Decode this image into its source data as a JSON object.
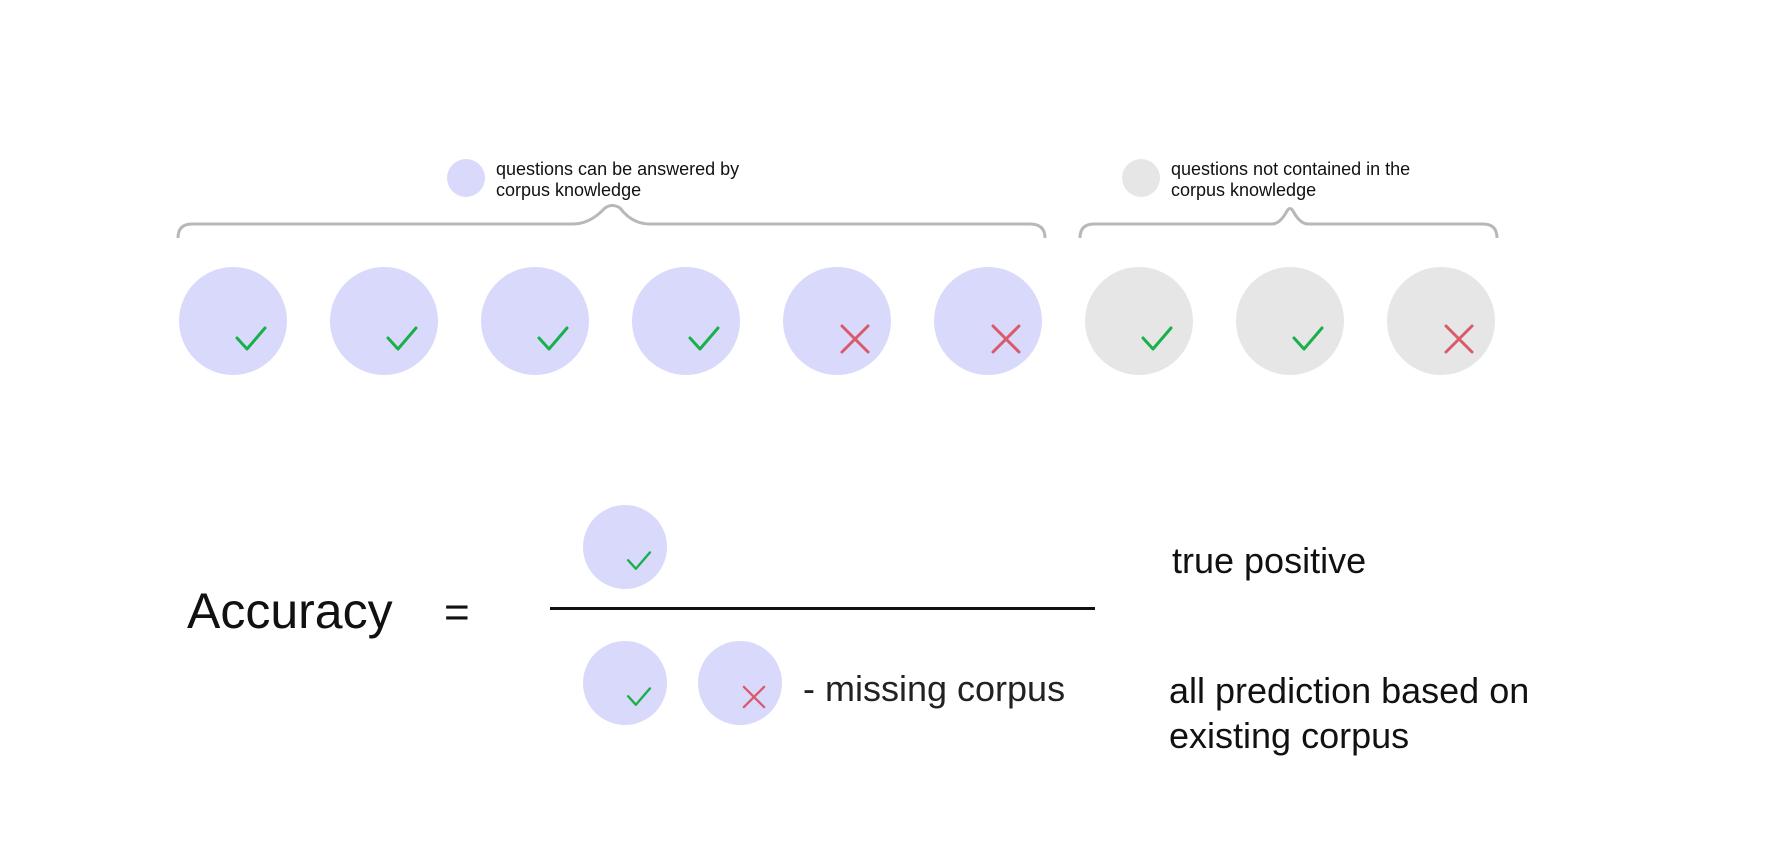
{
  "colors": {
    "answerable": "#d9d9fc",
    "not_contained": "#e6e6e6",
    "check": "#18b04a",
    "cross": "#d95a6a",
    "brace": "#b8b8b8"
  },
  "legend": {
    "answerable_label_line1": "questions can be answered by",
    "answerable_label_line2": "corpus knowledge",
    "not_contained_label_line1": "questions not contained in the",
    "not_contained_label_line2": "corpus knowledge"
  },
  "questions": [
    {
      "group": "answerable",
      "result": "correct"
    },
    {
      "group": "answerable",
      "result": "correct"
    },
    {
      "group": "answerable",
      "result": "correct"
    },
    {
      "group": "answerable",
      "result": "correct"
    },
    {
      "group": "answerable",
      "result": "wrong"
    },
    {
      "group": "answerable",
      "result": "wrong"
    },
    {
      "group": "not_contained",
      "result": "correct"
    },
    {
      "group": "not_contained",
      "result": "correct"
    },
    {
      "group": "not_contained",
      "result": "wrong"
    }
  ],
  "formula": {
    "label": "Accuracy",
    "equals": "=",
    "numerator_desc": "true positive",
    "denominator_desc_line1": "all prediction based on",
    "denominator_desc_line2": "existing corpus",
    "missing_corpus": "- missing corpus"
  }
}
